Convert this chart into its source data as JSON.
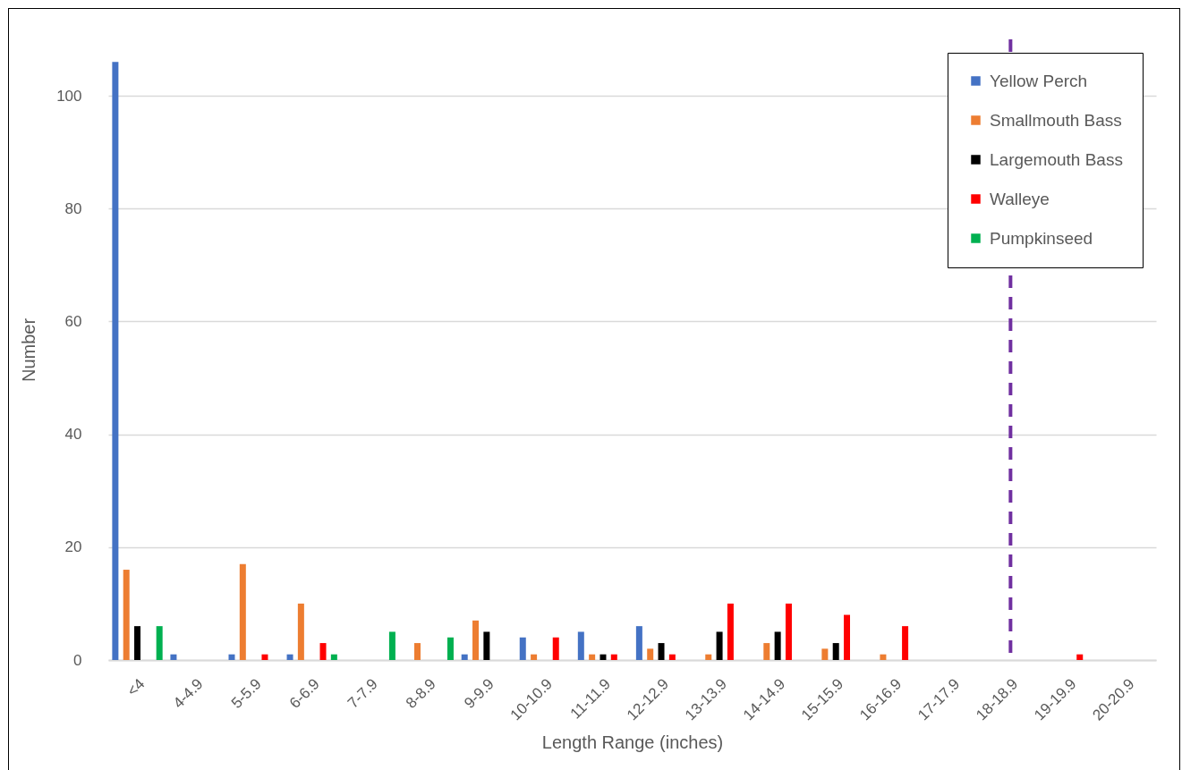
{
  "chart_data": {
    "type": "bar",
    "xlabel": "Length Range (inches)",
    "ylabel": "Number",
    "categories": [
      "<4",
      "4-4.9",
      "5-5.9",
      "6-6.9",
      "7-7.9",
      "8-8.9",
      "9-9.9",
      "10-10.9",
      "11-11.9",
      "12-12.9",
      "13-13.9",
      "14-14.9",
      "15-15.9",
      "16-16.9",
      "17-17.9",
      "18-18.9",
      "19-19.9",
      "20-20.9"
    ],
    "series": [
      {
        "name": "Yellow Perch",
        "color": "#4472c4",
        "values": [
          106,
          1,
          1,
          1,
          0,
          0,
          1,
          4,
          5,
          6,
          0,
          0,
          0,
          0,
          0,
          0,
          0,
          0
        ]
      },
      {
        "name": "Smallmouth Bass",
        "color": "#ed7d31",
        "values": [
          16,
          0,
          17,
          10,
          0,
          3,
          7,
          1,
          1,
          2,
          1,
          3,
          2,
          1,
          0,
          0,
          0,
          0
        ]
      },
      {
        "name": "Largemouth Bass",
        "color": "#000000",
        "values": [
          6,
          0,
          0,
          0,
          0,
          0,
          5,
          0,
          1,
          3,
          5,
          5,
          3,
          0,
          0,
          0,
          0,
          0
        ]
      },
      {
        "name": "Walleye",
        "color": "#ff0000",
        "values": [
          0,
          0,
          1,
          3,
          0,
          0,
          0,
          4,
          1,
          1,
          10,
          10,
          8,
          6,
          0,
          0,
          1,
          0
        ]
      },
      {
        "name": "Pumpkinseed",
        "color": "#00b050",
        "values": [
          6,
          0,
          0,
          1,
          5,
          4,
          0,
          0,
          0,
          0,
          0,
          0,
          0,
          0,
          0,
          0,
          0,
          0
        ]
      }
    ],
    "ylim": [
      0,
      110
    ],
    "yticks": [
      0,
      20,
      40,
      60,
      80,
      100
    ],
    "grid": "y",
    "legend": "top right",
    "ref_lines": [
      {
        "axis": "x",
        "value": "18-18.9",
        "color": "#7030a0",
        "line_style": "dashed"
      }
    ]
  }
}
